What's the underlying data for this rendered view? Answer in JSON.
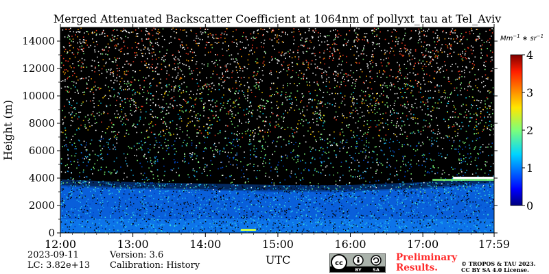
{
  "chart_data": {
    "type": "heatmap",
    "title": "Merged Attenuated Backscatter Coefficient at 1064nm of pollyxt_tau at Tel_Aviv",
    "xlabel": "UTC",
    "ylabel": "Height (m)",
    "x_ticks": [
      "12:00",
      "13:00",
      "14:00",
      "15:00",
      "16:00",
      "17:00",
      "17:59"
    ],
    "xlim": [
      12.0,
      17.983
    ],
    "y_ticks": [
      0,
      2000,
      4000,
      6000,
      8000,
      10000,
      12000,
      14000
    ],
    "ylim": [
      0,
      15000
    ],
    "colorbar": {
      "label": "Mm^-1 * sr^-1",
      "ticks": [
        0,
        1,
        2,
        3,
        4
      ],
      "range": [
        0,
        4
      ],
      "colormap": "jet"
    },
    "features": {
      "boundary_layer_top_m": [
        3500,
        3300,
        3200,
        3100,
        3100,
        3300,
        3700
      ],
      "cloud": {
        "time_start": "17:25",
        "time_end": "17:59",
        "height_m": 4000
      },
      "surface_feature": {
        "time": "14:35",
        "height_m": 200
      }
    }
  },
  "footer": {
    "date": "2023-09-11",
    "lc": "LC: 3.82e+13",
    "version": "Version: 3.6",
    "calibration": "Calibration: History",
    "preliminary_line1": "Preliminary",
    "preliminary_line2": "Results.",
    "copyright_line1": "© TROPOS & TAU 2023.",
    "copyright_line2": "CC BY SA 4.0 License.",
    "cc_badge": [
      "cc",
      "BY",
      "SA"
    ]
  },
  "colors": {
    "background": "#000000",
    "boundary_layer": "#0a64e6",
    "preliminary": "#ff2b2b"
  }
}
